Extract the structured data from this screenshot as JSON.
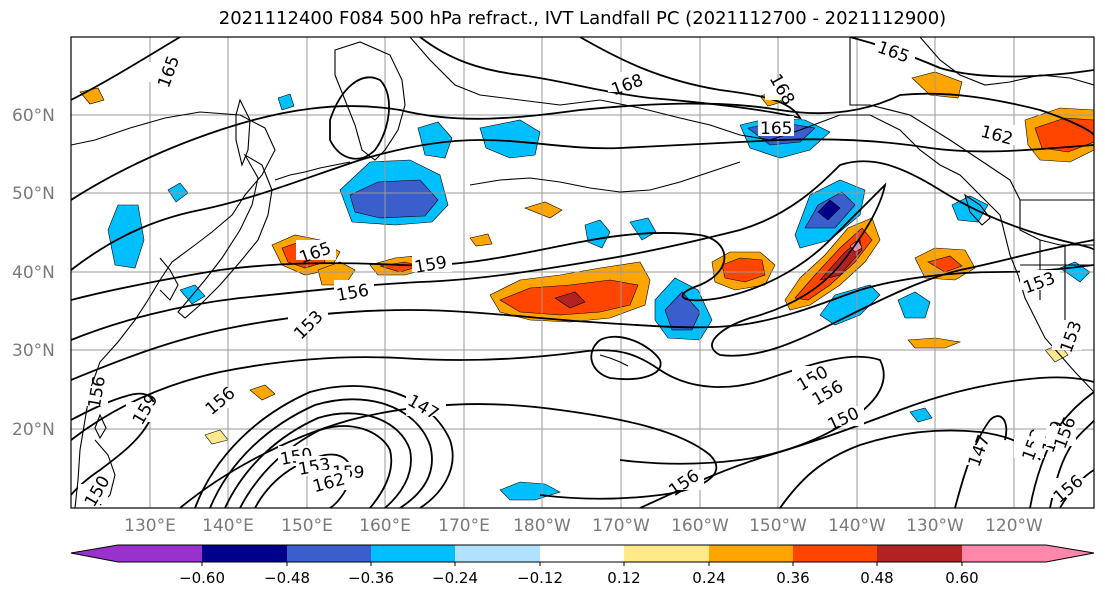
{
  "title": "2021112400 F084 500 hPa refract., IVT Landfall PC (2021112700 - 2021112900)",
  "lat_ticks": [
    "20°N",
    "30°N",
    "40°N",
    "50°N",
    "60°N"
  ],
  "lon_ticks": [
    "130°E",
    "140°E",
    "150°E",
    "160°E",
    "170°E",
    "180°W",
    "170°W",
    "160°W",
    "150°W",
    "140°W",
    "130°W",
    "120°W"
  ],
  "contour_labels": [
    {
      "text": "165"
    },
    {
      "text": "168"
    },
    {
      "text": "168"
    },
    {
      "text": "165"
    },
    {
      "text": "165"
    },
    {
      "text": "162"
    },
    {
      "text": "165"
    },
    {
      "text": "159"
    },
    {
      "text": "156"
    },
    {
      "text": "153"
    },
    {
      "text": "153"
    },
    {
      "text": "153"
    },
    {
      "text": "150"
    },
    {
      "text": "156"
    },
    {
      "text": "150"
    },
    {
      "text": "147"
    },
    {
      "text": "156"
    },
    {
      "text": "159"
    },
    {
      "text": "150"
    },
    {
      "text": "153"
    },
    {
      "text": "159"
    },
    {
      "text": "162"
    },
    {
      "text": "156"
    },
    {
      "text": "156"
    },
    {
      "text": "147"
    },
    {
      "text": "153"
    },
    {
      "text": "159"
    },
    {
      "text": "156"
    },
    {
      "text": "156"
    },
    {
      "text": "150"
    }
  ],
  "colorbar": {
    "ticks": [
      "−0.60",
      "−0.48",
      "−0.36",
      "−0.24",
      "−0.12",
      "0.12",
      "0.24",
      "0.36",
      "0.48",
      "0.60"
    ],
    "colors": [
      "#9932cc",
      "#00008b",
      "#3a5fcd",
      "#00bfff",
      "#b0e2ff",
      "#ffffff",
      "#ffe98a",
      "#ffa500",
      "#ff4500",
      "#b22222",
      "#ff88aa"
    ]
  }
}
